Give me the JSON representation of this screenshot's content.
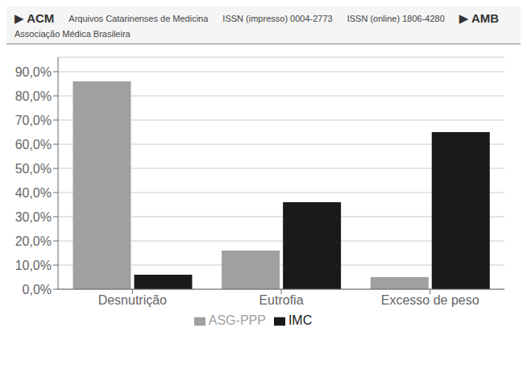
{
  "chart_data": {
    "type": "bar",
    "annotations": [
      "▶ ACM",
      "Arquivos Catarinenses de Medicina",
      "ISSN (impresso) 0004-2773",
      "ISSN (online) 1806-4280",
      "▶ AMB",
      "Associação Médica Brasileira"
    ],
    "categories": [
      "Desnutrição",
      "Eutrofia",
      "Excesso de peso"
    ],
    "series": [
      {
        "name": "ASG-PPP",
        "color": "#a0a0a0",
        "values": [
          0.86,
          0.16,
          0.05
        ]
      },
      {
        "name": "IMC",
        "color": "#1a1a1a",
        "values": [
          0.06,
          0.36,
          0.65
        ]
      }
    ],
    "ylim": [
      0,
      0.96
    ],
    "yticks": [
      {
        "value": 0.0,
        "label": "0,0%"
      },
      {
        "value": 0.1,
        "label": "10,0%"
      },
      {
        "value": 0.2,
        "label": "20,0%"
      },
      {
        "value": 0.3,
        "label": "30,0%"
      },
      {
        "value": 0.4,
        "label": "40,0%"
      },
      {
        "value": 0.5,
        "label": "50,0%"
      },
      {
        "value": 0.6,
        "label": "60,0%"
      },
      {
        "value": 0.7,
        "label": "70,0%"
      },
      {
        "value": 0.8,
        "label": "80,0%"
      },
      {
        "value": 0.9,
        "label": "90,0%"
      }
    ],
    "grid": true,
    "legend": "bottom"
  }
}
